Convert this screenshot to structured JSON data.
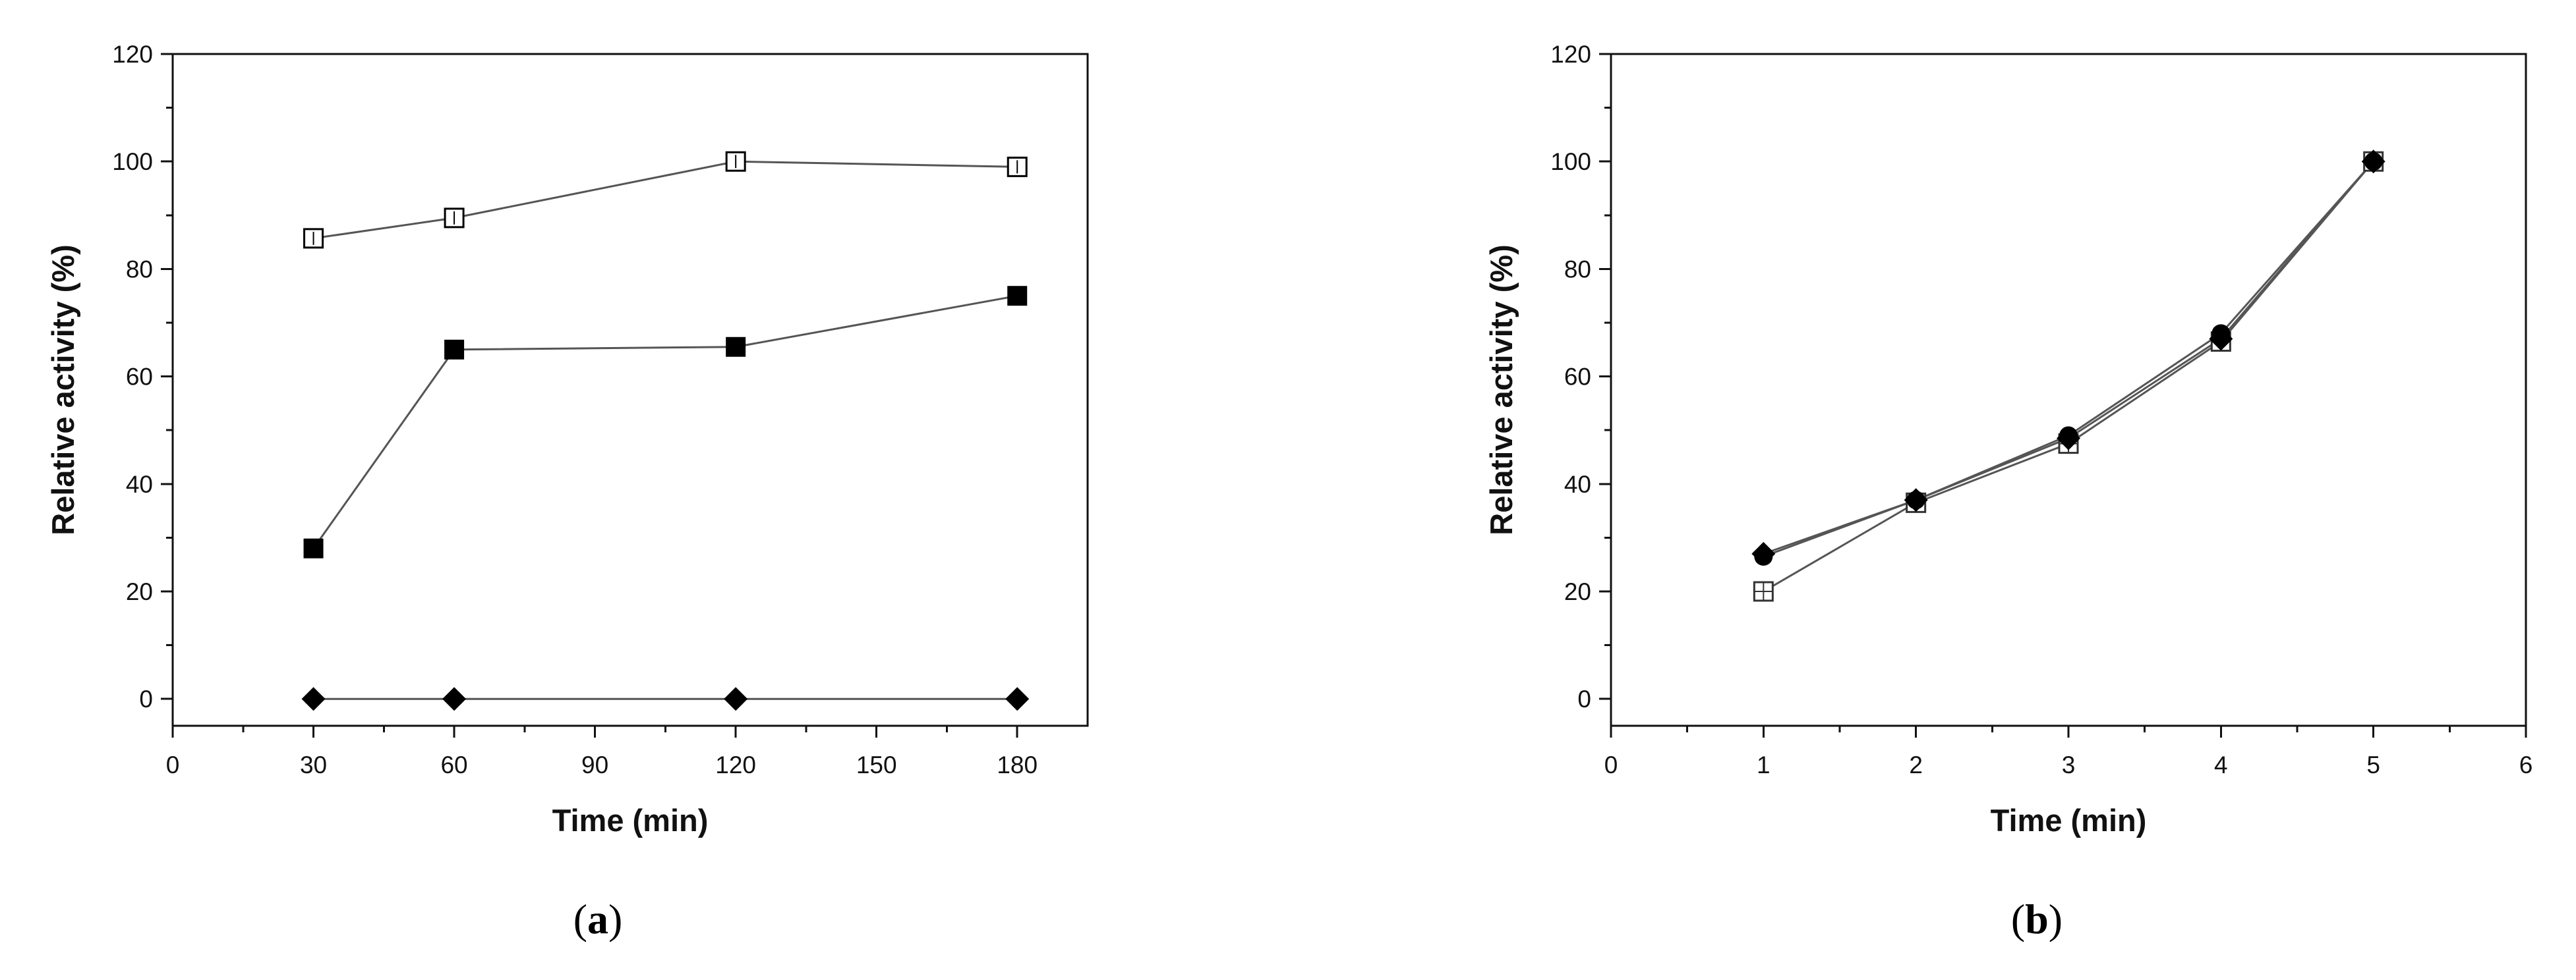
{
  "figure": {
    "background": "#ffffff",
    "line_color": "#555555",
    "marker_color": "#000000"
  },
  "chart_data": [
    {
      "panel_label": "a",
      "caption": "(a)",
      "type": "line",
      "xlabel": "Time (min)",
      "ylabel": "Relative activity (%)",
      "xlim": [
        0,
        195
      ],
      "ylim": [
        -5,
        120
      ],
      "xticks": [
        0,
        30,
        60,
        90,
        120,
        150,
        180
      ],
      "xtick_labels": [
        "0",
        "30",
        "60",
        "90",
        "120",
        "150",
        "180"
      ],
      "yticks": [
        0,
        20,
        40,
        60,
        80,
        100,
        120
      ],
      "ytick_labels": [
        "0",
        "20",
        "40",
        "60",
        "80",
        "100",
        "120"
      ],
      "grid": false,
      "legend": "none",
      "series": [
        {
          "marker": "open-square",
          "x": [
            30,
            60,
            120,
            180
          ],
          "y": [
            85.7,
            89.5,
            100,
            99
          ]
        },
        {
          "marker": "filled-square",
          "x": [
            30,
            60,
            120,
            180
          ],
          "y": [
            28,
            65,
            65.5,
            75
          ]
        },
        {
          "marker": "filled-diamond",
          "x": [
            30,
            60,
            120,
            180
          ],
          "y": [
            0,
            0,
            0,
            0
          ]
        }
      ]
    },
    {
      "panel_label": "b",
      "caption": "(b)",
      "type": "line",
      "xlabel": "Time (min)",
      "ylabel": "Relative activity (%)",
      "xlim": [
        0,
        6
      ],
      "ylim": [
        -5,
        120
      ],
      "xticks": [
        0,
        1,
        2,
        3,
        4,
        5,
        6
      ],
      "xtick_labels": [
        "0",
        "1",
        "2",
        "3",
        "4",
        "5",
        "6"
      ],
      "yticks": [
        0,
        20,
        40,
        60,
        80,
        100,
        120
      ],
      "ytick_labels": [
        "0",
        "20",
        "40",
        "60",
        "80",
        "100",
        "120"
      ],
      "grid": false,
      "legend": "none",
      "series": [
        {
          "marker": "crossed-square",
          "x": [
            1,
            2,
            3,
            4,
            5
          ],
          "y": [
            20,
            36.5,
            47.5,
            66.5,
            100
          ]
        },
        {
          "marker": "filled-diamond",
          "x": [
            1,
            2,
            3,
            4,
            5
          ],
          "y": [
            27,
            37,
            48.5,
            67,
            100
          ]
        },
        {
          "marker": "filled-circle",
          "x": [
            1,
            2,
            3,
            4,
            5
          ],
          "y": [
            26.5,
            37,
            49,
            68,
            100
          ]
        }
      ]
    }
  ]
}
